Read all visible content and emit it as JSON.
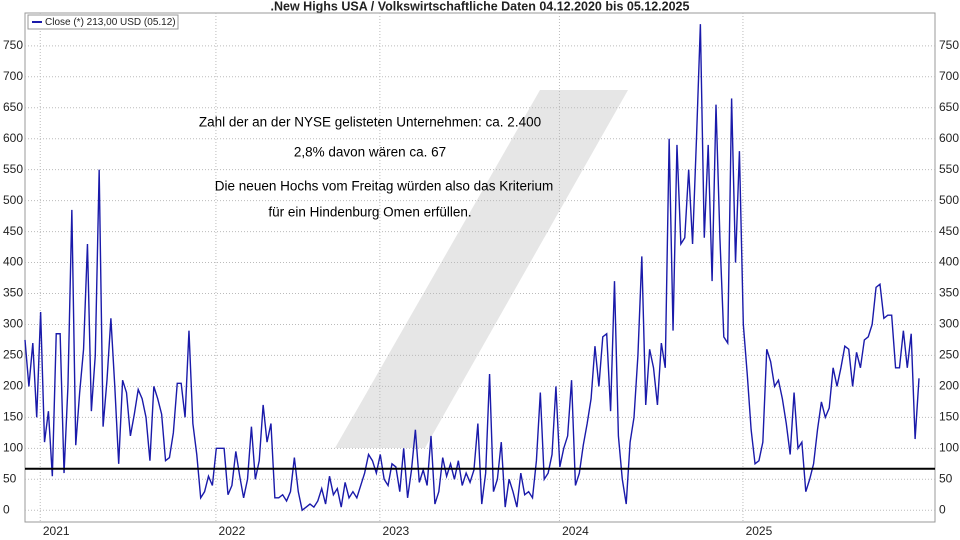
{
  "chart_data": {
    "type": "line",
    "title": ".New Highs USA / Volkswirtschaftliche Daten 04.12.2020 bis 05.12.2025",
    "annotations": [
      "Zahl der an der NYSE gelisteten Unternehmen: ca. 2.400",
      "2,8% davon wären ca. 67",
      "Die neuen Hochs vom Freitag würden also das Kriterium",
      "für ein Hindenburg Omen erfüllen."
    ],
    "reference_line": 67,
    "grid": true,
    "legend": "top-left",
    "ylim": [
      -19,
      803
    ],
    "yticks": [
      0,
      50,
      100,
      150,
      200,
      250,
      300,
      350,
      400,
      450,
      500,
      550,
      600,
      650,
      700,
      750
    ],
    "categories": [
      null,
      null,
      null,
      null,
      null,
      null,
      null,
      null,
      "2021",
      null,
      null,
      null,
      null,
      null,
      null,
      null,
      null,
      null,
      null,
      null,
      null,
      null,
      null,
      null,
      null,
      null,
      null,
      null,
      null,
      null,
      null,
      null,
      null,
      null,
      null,
      null,
      null,
      null,
      null,
      null,
      null,
      null,
      null,
      null,
      null,
      null,
      null,
      null,
      null,
      null,
      null,
      null,
      null,
      "2022",
      null,
      null,
      null,
      null,
      null,
      null,
      null,
      null,
      null,
      null,
      null,
      null,
      null,
      null,
      null,
      null,
      null,
      null,
      null,
      null,
      null,
      null,
      null,
      null,
      null,
      null,
      null,
      null,
      null,
      null,
      null,
      null,
      null,
      null,
      null,
      null,
      null,
      null,
      null,
      null,
      null,
      "2023",
      null,
      null,
      null,
      null,
      null,
      null,
      null,
      null,
      null,
      null,
      null,
      null,
      null,
      null,
      null,
      null,
      null,
      null,
      null,
      null,
      null,
      null,
      null,
      null,
      null,
      null,
      null,
      null,
      null,
      null,
      null,
      null,
      null,
      null,
      null,
      null,
      null,
      null,
      null,
      null,
      null,
      null,
      null,
      null,
      null,
      "2024",
      null,
      null,
      null,
      null,
      null,
      null,
      null,
      null,
      null,
      null,
      null,
      null,
      null,
      null,
      null,
      null,
      null,
      null,
      null,
      null,
      null,
      null,
      null,
      null,
      null,
      null,
      null,
      null,
      null,
      null,
      null,
      null,
      null,
      null,
      null,
      null,
      null,
      null,
      null,
      null,
      null,
      null,
      null,
      null,
      null,
      null,
      "2025",
      null,
      null,
      null,
      null,
      null,
      null,
      null,
      null,
      null,
      null,
      null,
      null,
      null,
      null,
      null,
      null,
      null,
      null,
      null,
      null,
      null,
      null,
      null,
      null,
      null,
      null,
      null,
      null,
      null,
      null,
      null,
      null,
      null,
      null,
      null,
      null,
      null,
      null,
      null,
      null,
      null
    ],
    "series": [
      {
        "name": "Close (*) 213,00 USD (05.12)",
        "color": "#1a1aaa",
        "values": [
          275,
          200,
          270,
          150,
          320,
          110,
          160,
          55,
          285,
          285,
          60,
          200,
          485,
          105,
          190,
          260,
          430,
          160,
          250,
          550,
          135,
          210,
          310,
          200,
          75,
          210,
          190,
          120,
          155,
          195,
          180,
          150,
          80,
          200,
          180,
          155,
          80,
          85,
          125,
          205,
          205,
          150,
          290,
          140,
          90,
          20,
          30,
          55,
          40,
          100,
          100,
          100,
          25,
          40,
          95,
          55,
          20,
          50,
          135,
          50,
          80,
          170,
          110,
          140,
          20,
          20,
          25,
          15,
          30,
          85,
          30,
          0,
          5,
          10,
          5,
          15,
          35,
          10,
          55,
          25,
          35,
          5,
          45,
          20,
          30,
          20,
          40,
          60,
          90,
          80,
          60,
          90,
          50,
          40,
          75,
          70,
          30,
          100,
          20,
          65,
          130,
          45,
          65,
          40,
          120,
          10,
          30,
          85,
          55,
          75,
          50,
          80,
          40,
          60,
          45,
          65,
          140,
          10,
          60,
          220,
          30,
          50,
          110,
          5,
          50,
          30,
          5,
          60,
          25,
          30,
          20,
          80,
          190,
          50,
          60,
          90,
          200,
          70,
          100,
          120,
          210,
          40,
          60,
          105,
          140,
          180,
          265,
          200,
          280,
          285,
          160,
          370,
          120,
          50,
          10,
          110,
          150,
          250,
          410,
          170,
          260,
          230,
          170,
          270,
          230,
          600,
          290,
          590,
          430,
          440,
          550,
          430,
          600,
          785,
          440,
          590,
          370,
          655,
          440,
          280,
          270,
          665,
          400,
          580,
          300,
          220,
          130,
          75,
          80,
          110,
          260,
          240,
          200,
          210,
          180,
          140,
          90,
          190,
          100,
          110,
          30,
          50,
          75,
          130,
          175,
          150,
          165,
          230,
          200,
          230,
          265,
          260,
          200,
          255,
          230,
          275,
          280,
          300,
          360,
          365,
          310,
          315,
          315,
          230,
          230,
          290,
          230,
          285,
          115,
          213
        ]
      }
    ]
  }
}
